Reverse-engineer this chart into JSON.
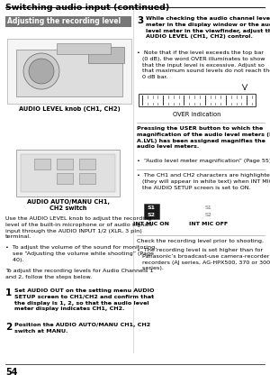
{
  "title": "Switching audio input (continued)",
  "section_header": "Adjusting the recording level",
  "page_number": "54",
  "bg_color": "#ffffff",
  "text_color": "#000000",
  "section_header_bg": "#777777",
  "section_header_color": "#ffffff"
}
